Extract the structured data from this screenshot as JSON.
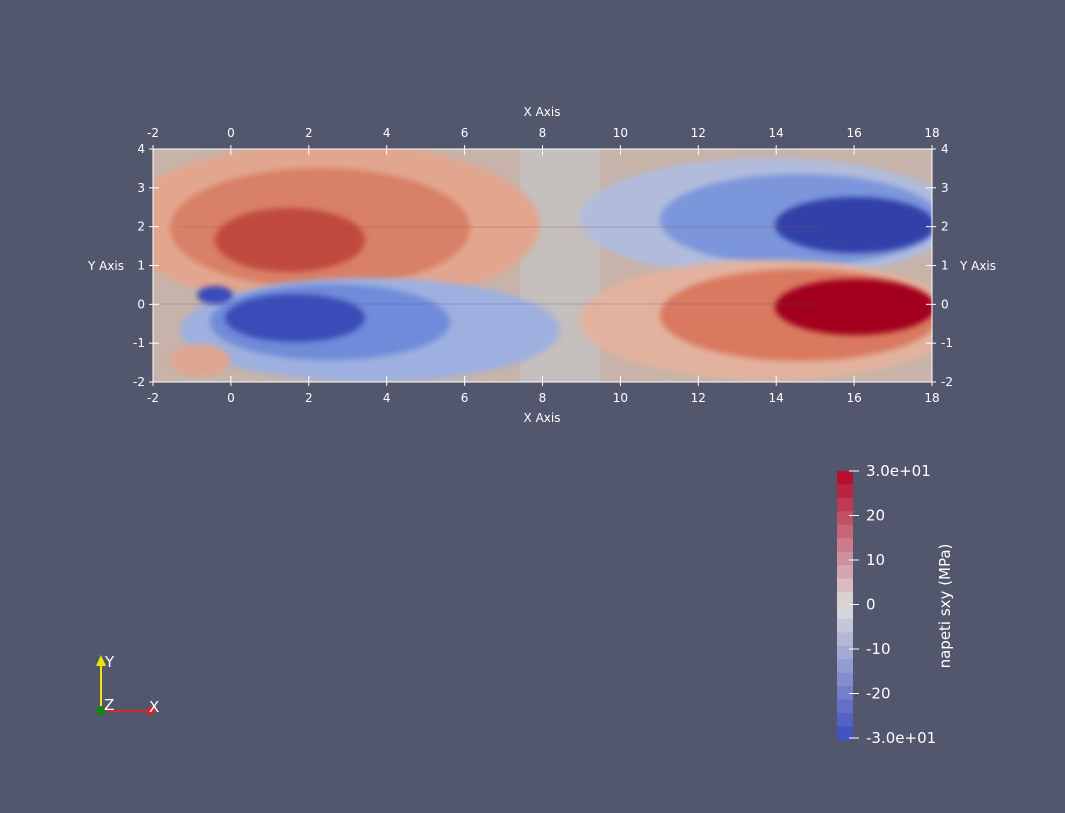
{
  "scene": {
    "axis_title_x": "X Axis",
    "axis_title_y": "Y Axis",
    "x_ticks": [
      "-2",
      "0",
      "2",
      "4",
      "6",
      "8",
      "10",
      "12",
      "14",
      "16",
      "18"
    ],
    "y_ticks": [
      "4",
      "3",
      "2",
      "1",
      "0",
      "-1",
      "-2"
    ],
    "x_range": [
      -2,
      18
    ],
    "y_range": [
      -2,
      4
    ],
    "background_color": "#52576e",
    "field_name": "napeti sxy (MPa)"
  },
  "colorbar": {
    "title": "napeti sxy (MPa)",
    "max_label": "3.0e+01",
    "min_label": "-3.0e+01",
    "tick_labels": [
      "20",
      "10",
      "0",
      "-10",
      "-20"
    ],
    "range": [
      -30,
      30
    ],
    "bands": 20,
    "color_high": "#b40426",
    "color_mid": "#dddcdc",
    "color_low": "#3b4cc0"
  },
  "orientation_axes": {
    "x_label": "X",
    "y_label": "Y",
    "z_label": "Z",
    "x_color": "#d62728",
    "y_color": "#e8e800",
    "z_color": "#1a7f1a"
  }
}
